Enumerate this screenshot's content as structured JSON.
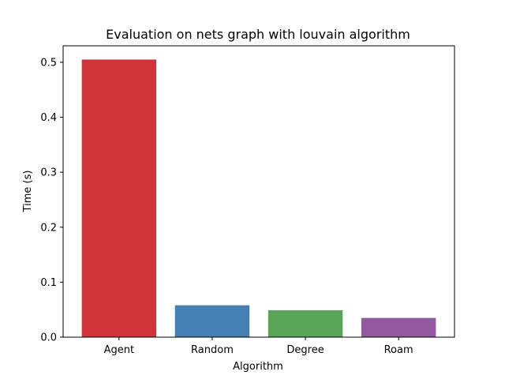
{
  "chart_data": {
    "type": "bar",
    "title": "Evaluation on nets graph with louvain algorithm",
    "xlabel": "Algorithm",
    "ylabel": "Time (s)",
    "categories": [
      "Agent",
      "Random",
      "Degree",
      "Roam"
    ],
    "values": [
      0.505,
      0.058,
      0.049,
      0.035
    ],
    "colors": [
      "#d03438",
      "#4580b4",
      "#58a558",
      "#9259a0"
    ],
    "ylim": [
      0,
      0.53
    ],
    "yticks": [
      0.0,
      0.1,
      0.2,
      0.3,
      0.4,
      0.5
    ],
    "ytick_labels": [
      "0.0",
      "0.1",
      "0.2",
      "0.3",
      "0.4",
      "0.5"
    ],
    "grid": false,
    "legend": "none"
  }
}
